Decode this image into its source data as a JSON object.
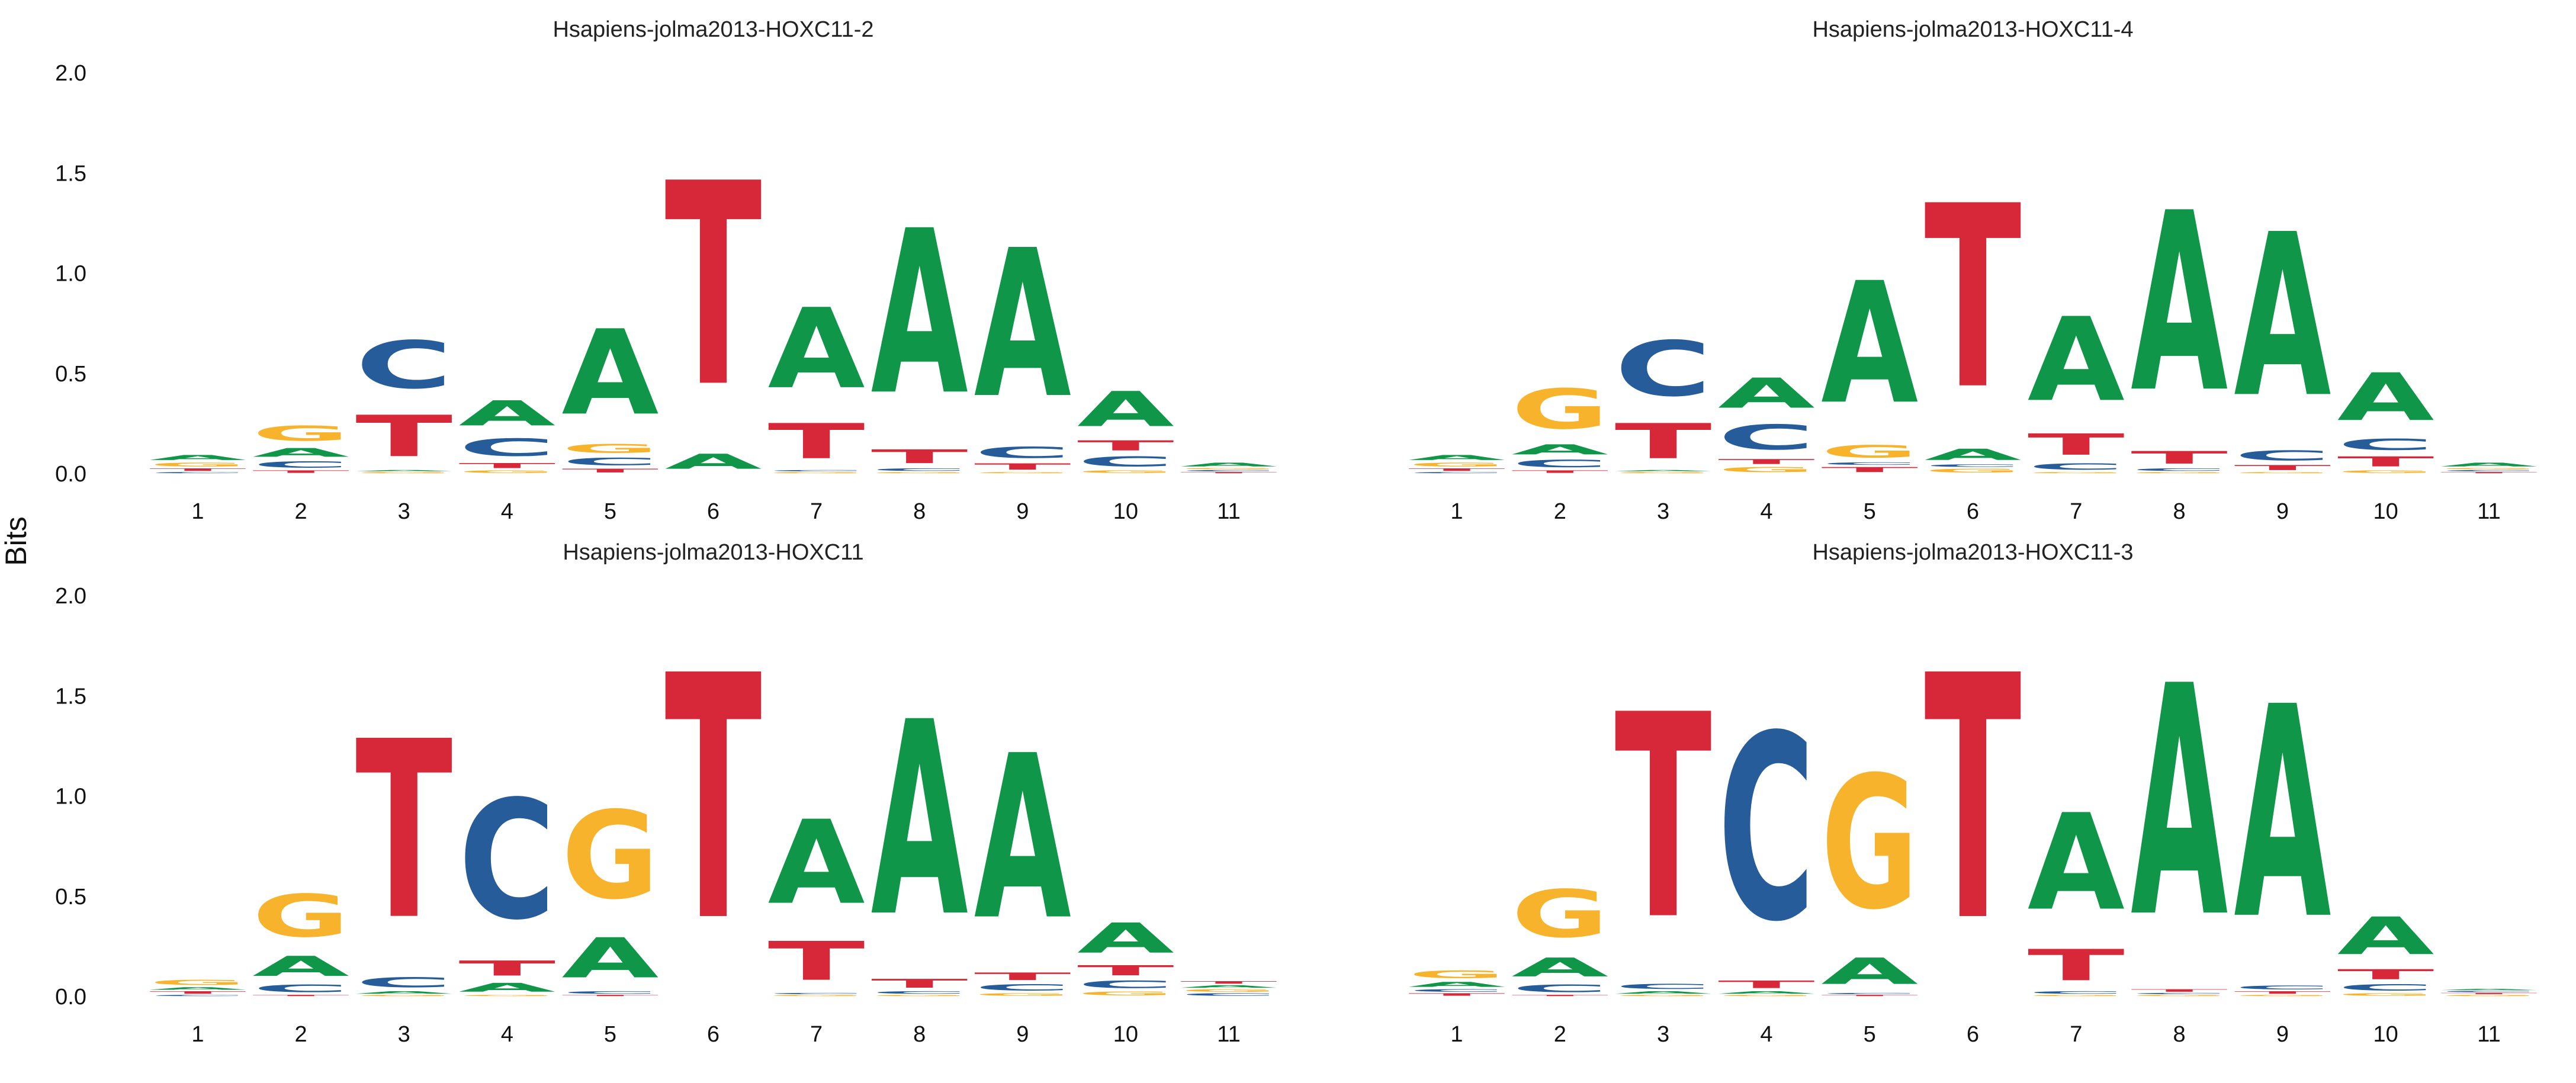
{
  "figure": {
    "ylabel": "Bits"
  },
  "colors": {
    "A": "#109648",
    "C": "#255C99",
    "G": "#F7B32B",
    "T": "#D62839"
  },
  "chart_data": [
    {
      "type": "sequence-logo",
      "title": "Hsapiens-jolma2013-HOXC11-2",
      "ylabel": "Bits",
      "ylim": [
        0,
        2.0
      ],
      "yticks": [
        "0.0",
        "0.5",
        "1.0",
        "1.5",
        "2.0"
      ],
      "xticks": [
        "1",
        "2",
        "3",
        "4",
        "5",
        "6",
        "7",
        "8",
        "9",
        "10",
        "11"
      ],
      "positions": [
        [
          [
            "C",
            0.01
          ],
          [
            "T",
            0.02
          ],
          [
            "G",
            0.03
          ],
          [
            "A",
            0.04
          ]
        ],
        [
          [
            "T",
            0.02
          ],
          [
            "C",
            0.05
          ],
          [
            "A",
            0.07
          ],
          [
            "G",
            0.12
          ]
        ],
        [
          [
            "G",
            0.01
          ],
          [
            "A",
            0.01
          ],
          [
            "T",
            0.33
          ],
          [
            "C",
            0.38
          ]
        ],
        [
          [
            "G",
            0.02
          ],
          [
            "T",
            0.04
          ],
          [
            "C",
            0.14
          ],
          [
            "A",
            0.2
          ]
        ],
        [
          [
            "T",
            0.03
          ],
          [
            "C",
            0.06
          ],
          [
            "G",
            0.07
          ],
          [
            "A",
            0.68
          ]
        ],
        [
          [
            "A",
            0.12
          ],
          [
            "T",
            1.62
          ]
        ],
        [
          [
            "G",
            0.01
          ],
          [
            "C",
            0.01
          ],
          [
            "T",
            0.28
          ],
          [
            "A",
            0.64
          ]
        ],
        [
          [
            "G",
            0.01
          ],
          [
            "C",
            0.02
          ],
          [
            "T",
            0.11
          ],
          [
            "A",
            1.31
          ]
        ],
        [
          [
            "G",
            0.01
          ],
          [
            "T",
            0.05
          ],
          [
            "C",
            0.09
          ],
          [
            "A",
            1.18
          ]
        ],
        [
          [
            "G",
            0.02
          ],
          [
            "C",
            0.08
          ],
          [
            "T",
            0.08
          ],
          [
            "A",
            0.28
          ]
        ],
        [
          [
            "T",
            0.01
          ],
          [
            "C",
            0.01
          ],
          [
            "G",
            0.01
          ],
          [
            "A",
            0.03
          ]
        ]
      ]
    },
    {
      "type": "sequence-logo",
      "title": "Hsapiens-jolma2013-HOXC11-4",
      "ylabel": "Bits",
      "ylim": [
        0,
        2.0
      ],
      "yticks": [
        "0.0",
        "0.5",
        "1.0",
        "1.5",
        "2.0"
      ],
      "xticks": [
        "1",
        "2",
        "3",
        "4",
        "5",
        "6",
        "7",
        "8",
        "9",
        "10",
        "11"
      ],
      "positions": [
        [
          [
            "C",
            0.01
          ],
          [
            "T",
            0.02
          ],
          [
            "G",
            0.03
          ],
          [
            "A",
            0.04
          ]
        ],
        [
          [
            "T",
            0.02
          ],
          [
            "C",
            0.06
          ],
          [
            "A",
            0.08
          ],
          [
            "G",
            0.32
          ]
        ],
        [
          [
            "G",
            0.01
          ],
          [
            "A",
            0.01
          ],
          [
            "T",
            0.28
          ],
          [
            "C",
            0.44
          ]
        ],
        [
          [
            "G",
            0.04
          ],
          [
            "T",
            0.04
          ],
          [
            "C",
            0.2
          ],
          [
            "A",
            0.24
          ]
        ],
        [
          [
            "T",
            0.04
          ],
          [
            "C",
            0.02
          ],
          [
            "G",
            0.1
          ],
          [
            "A",
            0.97
          ]
        ],
        [
          [
            "G",
            0.03
          ],
          [
            "C",
            0.02
          ],
          [
            "A",
            0.09
          ],
          [
            "T",
            1.46
          ]
        ],
        [
          [
            "G",
            0.01
          ],
          [
            "C",
            0.05
          ],
          [
            "T",
            0.17
          ],
          [
            "A",
            0.67
          ]
        ],
        [
          [
            "G",
            0.01
          ],
          [
            "C",
            0.02
          ],
          [
            "T",
            0.1
          ],
          [
            "A",
            1.43
          ]
        ],
        [
          [
            "G",
            0.01
          ],
          [
            "T",
            0.04
          ],
          [
            "C",
            0.08
          ],
          [
            "A",
            1.3
          ]
        ],
        [
          [
            "G",
            0.02
          ],
          [
            "T",
            0.08
          ],
          [
            "C",
            0.09
          ],
          [
            "A",
            0.38
          ]
        ],
        [
          [
            "T",
            0.01
          ],
          [
            "C",
            0.01
          ],
          [
            "G",
            0.01
          ],
          [
            "A",
            0.03
          ]
        ]
      ]
    },
    {
      "type": "sequence-logo",
      "title": "Hsapiens-jolma2013-HOXC11",
      "ylabel": "Bits",
      "ylim": [
        0,
        2.0
      ],
      "yticks": [
        "0.0",
        "0.5",
        "1.0",
        "1.5",
        "2.0"
      ],
      "xticks": [
        "1",
        "2",
        "3",
        "4",
        "5",
        "6",
        "7",
        "8",
        "9",
        "10",
        "11"
      ],
      "positions": [
        [
          [
            "C",
            0.01
          ],
          [
            "T",
            0.02
          ],
          [
            "A",
            0.02
          ],
          [
            "G",
            0.04
          ]
        ],
        [
          [
            "T",
            0.01
          ],
          [
            "C",
            0.06
          ],
          [
            "A",
            0.16
          ],
          [
            "G",
            0.34
          ]
        ],
        [
          [
            "G",
            0.01
          ],
          [
            "A",
            0.02
          ],
          [
            "C",
            0.08
          ],
          [
            "T",
            1.42
          ]
        ],
        [
          [
            "G",
            0.01
          ],
          [
            "A",
            0.07
          ],
          [
            "T",
            0.12
          ],
          [
            "C",
            0.95
          ]
        ],
        [
          [
            "T",
            0.01
          ],
          [
            "C",
            0.02
          ],
          [
            "A",
            0.32
          ],
          [
            "G",
            0.7
          ]
        ],
        [
          [
            "T",
            1.95
          ]
        ],
        [
          [
            "G",
            0.01
          ],
          [
            "C",
            0.01
          ],
          [
            "T",
            0.31
          ],
          [
            "A",
            0.67
          ]
        ],
        [
          [
            "G",
            0.01
          ],
          [
            "C",
            0.02
          ],
          [
            "T",
            0.07
          ],
          [
            "A",
            1.55
          ]
        ],
        [
          [
            "G",
            0.02
          ],
          [
            "C",
            0.05
          ],
          [
            "T",
            0.06
          ],
          [
            "A",
            1.31
          ]
        ],
        [
          [
            "G",
            0.03
          ],
          [
            "C",
            0.06
          ],
          [
            "T",
            0.08
          ],
          [
            "A",
            0.24
          ]
        ],
        [
          [
            "C",
            0.02
          ],
          [
            "G",
            0.02
          ],
          [
            "A",
            0.02
          ],
          [
            "T",
            0.02
          ]
        ]
      ]
    },
    {
      "type": "sequence-logo",
      "title": "Hsapiens-jolma2013-HOXC11-3",
      "ylabel": "Bits",
      "ylim": [
        0,
        2.0
      ],
      "yticks": [
        "0.0",
        "0.5",
        "1.0",
        "1.5",
        "2.0"
      ],
      "xticks": [
        "1",
        "2",
        "3",
        "4",
        "5",
        "6",
        "7",
        "8",
        "9",
        "10",
        "11"
      ],
      "positions": [
        [
          [
            "T",
            0.02
          ],
          [
            "C",
            0.02
          ],
          [
            "A",
            0.04
          ],
          [
            "G",
            0.06
          ]
        ],
        [
          [
            "T",
            0.01
          ],
          [
            "C",
            0.06
          ],
          [
            "A",
            0.15
          ],
          [
            "G",
            0.38
          ]
        ],
        [
          [
            "G",
            0.01
          ],
          [
            "A",
            0.02
          ],
          [
            "C",
            0.04
          ],
          [
            "T",
            1.63
          ]
        ],
        [
          [
            "G",
            0.01
          ],
          [
            "A",
            0.02
          ],
          [
            "T",
            0.06
          ],
          [
            "C",
            1.48
          ]
        ],
        [
          [
            "T",
            0.01
          ],
          [
            "C",
            0.01
          ],
          [
            "A",
            0.21
          ],
          [
            "G",
            1.06
          ]
        ],
        [
          [
            "T",
            1.95
          ]
        ],
        [
          [
            "G",
            0.01
          ],
          [
            "C",
            0.02
          ],
          [
            "T",
            0.25
          ],
          [
            "A",
            0.77
          ]
        ],
        [
          [
            "G",
            0.01
          ],
          [
            "C",
            0.01
          ],
          [
            "T",
            0.02
          ],
          [
            "A",
            1.84
          ]
        ],
        [
          [
            "G",
            0.01
          ],
          [
            "T",
            0.02
          ],
          [
            "C",
            0.03
          ],
          [
            "A",
            1.69
          ]
        ],
        [
          [
            "G",
            0.02
          ],
          [
            "C",
            0.05
          ],
          [
            "T",
            0.08
          ],
          [
            "A",
            0.3
          ]
        ],
        [
          [
            "G",
            0.01
          ],
          [
            "T",
            0.01
          ],
          [
            "C",
            0.01
          ],
          [
            "A",
            0.01
          ]
        ]
      ]
    }
  ]
}
